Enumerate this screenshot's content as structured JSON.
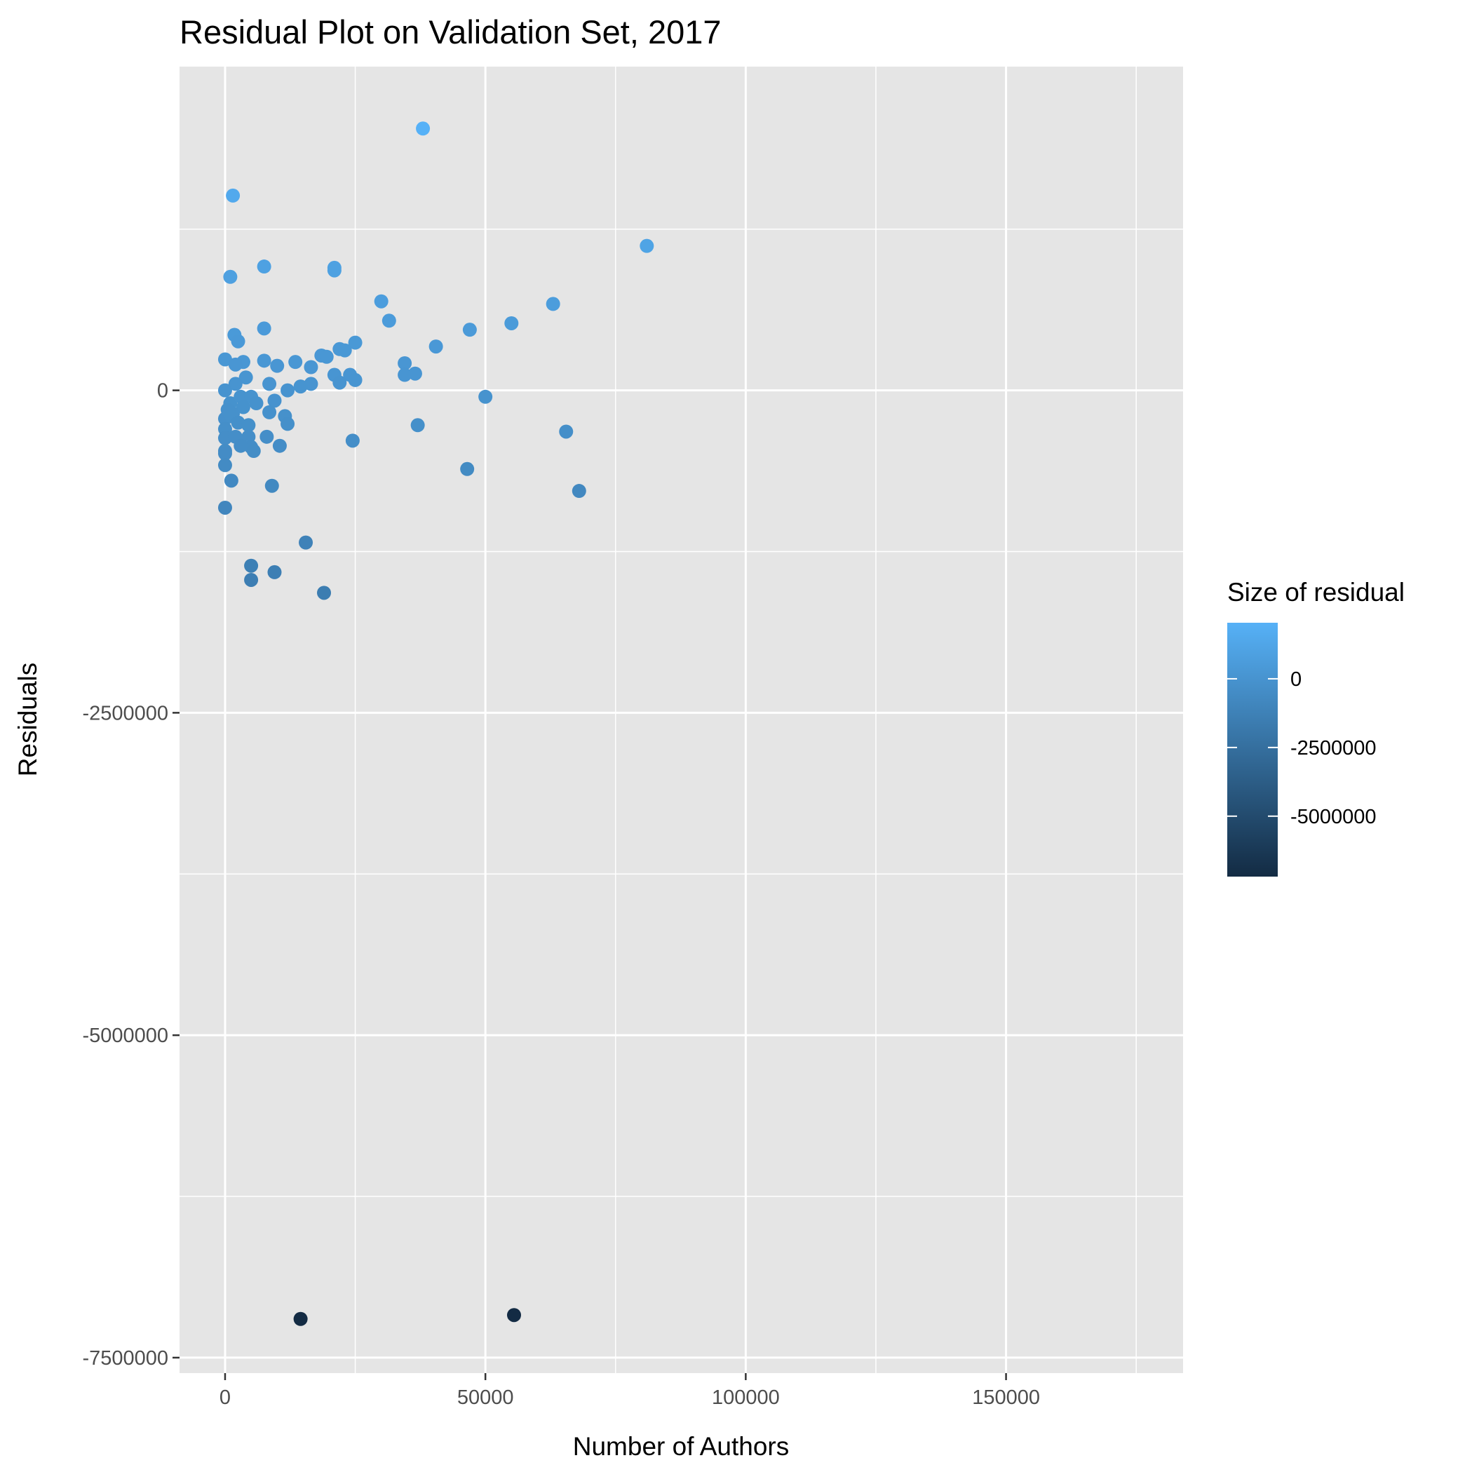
{
  "chart_data": {
    "type": "scatter",
    "title": "Residual Plot on Validation Set, 2017",
    "xlabel": "Number of Authors",
    "ylabel": "Residuals",
    "xlim": [
      -8750,
      184000
    ],
    "ylim": [
      -7620000,
      2510000
    ],
    "x_ticks": [
      0,
      50000,
      100000,
      150000
    ],
    "x_tick_labels": [
      "0",
      "50000",
      "100000",
      "150000"
    ],
    "y_ticks": [
      0,
      -2500000,
      -5000000,
      -7500000
    ],
    "y_tick_labels": [
      "0",
      "-2500000",
      "-5000000",
      "-7500000"
    ],
    "grid": true,
    "legend": {
      "title": "Size of residual",
      "position": "right",
      "range": [
        -7200000,
        2040000
      ],
      "ticks": [
        0,
        -2500000,
        -5000000
      ],
      "tick_labels": [
        "0",
        "-2500000",
        "-5000000"
      ],
      "color_low": "#132B43",
      "color_high": "#56B1F7"
    },
    "x": [
      38000,
      1500,
      81000,
      7500,
      21000,
      21000,
      1000,
      30000,
      63000,
      31500,
      55000,
      7500,
      47000,
      1800,
      25000,
      2500,
      40500,
      22000,
      23000,
      0,
      18500,
      19500,
      7500,
      34500,
      13500,
      3500,
      2000,
      16500,
      10000,
      36500,
      34500,
      21000,
      24000,
      25000,
      22000,
      16500,
      14500,
      12000,
      8500,
      4000,
      2000,
      0,
      1000,
      3000,
      5000,
      9500,
      6000,
      3500,
      1500,
      0,
      500,
      1200,
      2500,
      4500,
      8500,
      11500,
      50000,
      0,
      12000,
      37000,
      65500,
      0,
      2000,
      4500,
      8000,
      24500,
      5000,
      3000,
      10500,
      5500,
      0,
      0,
      0,
      46500,
      1200,
      9000,
      68000,
      0,
      15500,
      5000,
      9500,
      5000,
      19000,
      14500,
      55500
    ],
    "y": [
      2030000,
      1510000,
      1120000,
      960000,
      950000,
      930000,
      880000,
      690000,
      670000,
      540000,
      520000,
      480000,
      470000,
      430000,
      370000,
      380000,
      340000,
      320000,
      310000,
      240000,
      270000,
      260000,
      230000,
      210000,
      220000,
      220000,
      200000,
      180000,
      190000,
      130000,
      120000,
      120000,
      120000,
      80000,
      60000,
      50000,
      30000,
      0,
      50000,
      100000,
      50000,
      0,
      -100000,
      -50000,
      -50000,
      -80000,
      -100000,
      -130000,
      -180000,
      -220000,
      -150000,
      -200000,
      -250000,
      -270000,
      -170000,
      -200000,
      -50000,
      -300000,
      -260000,
      -270000,
      -320000,
      -370000,
      -360000,
      -360000,
      -360000,
      -390000,
      -440000,
      -430000,
      -430000,
      -470000,
      -470000,
      -490000,
      -580000,
      -610000,
      -700000,
      -740000,
      -780000,
      -910000,
      -1180000,
      -1360000,
      -1410000,
      -1470000,
      -1570000,
      -7200000,
      -7170000
    ],
    "series": [
      {
        "values": [
          2030000,
          1510000,
          1120000,
          960000,
          950000,
          930000,
          880000,
          690000,
          670000,
          540000,
          520000,
          480000,
          470000,
          430000,
          370000,
          380000,
          340000,
          320000,
          310000,
          240000,
          270000,
          260000,
          230000,
          210000,
          220000,
          220000,
          200000,
          180000,
          190000,
          130000,
          120000,
          120000,
          120000,
          80000,
          60000,
          50000,
          30000,
          0,
          50000,
          100000,
          50000,
          0,
          -100000,
          -50000,
          -50000,
          -80000,
          -100000,
          -130000,
          -180000,
          -220000,
          -150000,
          -200000,
          -250000,
          -270000,
          -170000,
          -200000,
          -50000,
          -300000,
          -260000,
          -270000,
          -320000,
          -370000,
          -360000,
          -360000,
          -360000,
          -390000,
          -440000,
          -430000,
          -430000,
          -470000,
          -470000,
          -490000,
          -580000,
          -610000,
          -700000,
          -740000,
          -780000,
          -910000,
          -1180000,
          -1360000,
          -1410000,
          -1470000,
          -1570000,
          -7200000,
          -7170000
        ]
      }
    ]
  }
}
